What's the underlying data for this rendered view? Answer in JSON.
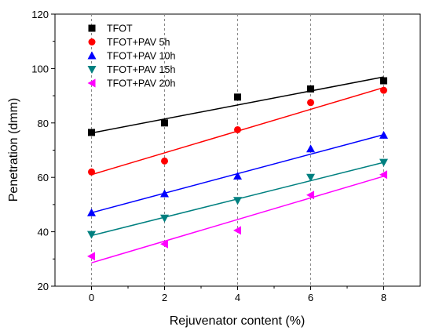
{
  "chart_data": {
    "type": "scatter",
    "title": "",
    "xlabel": "Rejuvenator content (%)",
    "ylabel": "Penetration (dmm)",
    "xlim": [
      -1,
      9
    ],
    "ylim": [
      20,
      120
    ],
    "xticks": [
      0,
      2,
      4,
      6,
      8
    ],
    "yticks": [
      20,
      40,
      60,
      80,
      100,
      120
    ],
    "grid": "vertical dashed at x ticks",
    "legend_position": "top-left",
    "series": [
      {
        "name": "TFOT",
        "marker": "square",
        "color": "#000000",
        "x": [
          0,
          2,
          4,
          6,
          8
        ],
        "y": [
          76.5,
          80,
          89.5,
          92.5,
          95.5
        ],
        "fit": [
          76.3,
          96.9
        ]
      },
      {
        "name": "TFOT+PAV 5h",
        "marker": "circle",
        "color": "#ff0000",
        "x": [
          0,
          2,
          4,
          6,
          8
        ],
        "y": [
          62,
          66,
          77.5,
          87.5,
          92
        ],
        "fit": [
          61,
          93
        ]
      },
      {
        "name": "TFOT+PAV 10h",
        "marker": "triangle-up",
        "color": "#0000ff",
        "x": [
          0,
          2,
          4,
          6,
          8
        ],
        "y": [
          47,
          54,
          60.5,
          70.5,
          75.5
        ],
        "fit": [
          47,
          75.7
        ]
      },
      {
        "name": "TFOT+PAV 15h",
        "marker": "triangle-down",
        "color": "#008080",
        "x": [
          0,
          2,
          4,
          6,
          8
        ],
        "y": [
          39,
          45,
          51.5,
          60,
          65.5
        ],
        "fit": [
          38.6,
          65.5
        ]
      },
      {
        "name": "TFOT+PAV 20h",
        "marker": "triangle-left",
        "color": "#ff00ff",
        "x": [
          0,
          2,
          4,
          6,
          8
        ],
        "y": [
          31,
          35.5,
          40.5,
          53.5,
          61
        ],
        "fit": [
          28.6,
          60.4
        ]
      }
    ]
  }
}
